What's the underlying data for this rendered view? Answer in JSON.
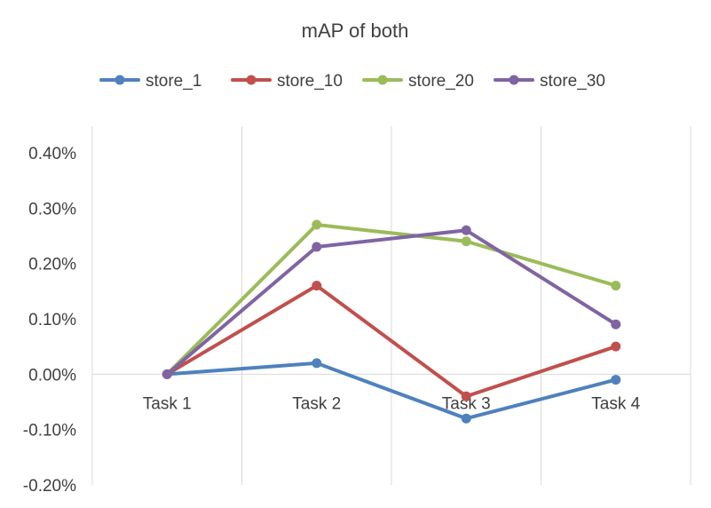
{
  "chart_data": {
    "type": "line",
    "title": "mAP of both",
    "xlabel": "",
    "ylabel": "",
    "categories": [
      "Task 1",
      "Task 2",
      "Task 3",
      "Task 4"
    ],
    "ylim": [
      -0.002,
      0.004
    ],
    "yticks": [
      0.004,
      0.003,
      0.002,
      0.001,
      0.0,
      -0.001,
      -0.002
    ],
    "ytick_labels": [
      "0.40%",
      "0.30%",
      "0.20%",
      "0.10%",
      "0.00%",
      "-0.10%",
      "-0.20%"
    ],
    "grid": "vertical",
    "legend_position": "top",
    "series": [
      {
        "name": "store_1",
        "color": "#4F81BD",
        "values": [
          0.0,
          0.0002,
          -0.0008,
          -0.0001
        ]
      },
      {
        "name": "store_10",
        "color": "#C0504D",
        "values": [
          0.0,
          0.0016,
          -0.0004,
          0.0005
        ]
      },
      {
        "name": "store_20",
        "color": "#9BBB59",
        "values": [
          0.0,
          0.0027,
          0.0024,
          0.0016
        ]
      },
      {
        "name": "store_30",
        "color": "#8064A2",
        "values": [
          0.0,
          0.0023,
          0.0026,
          0.0009
        ]
      }
    ]
  }
}
